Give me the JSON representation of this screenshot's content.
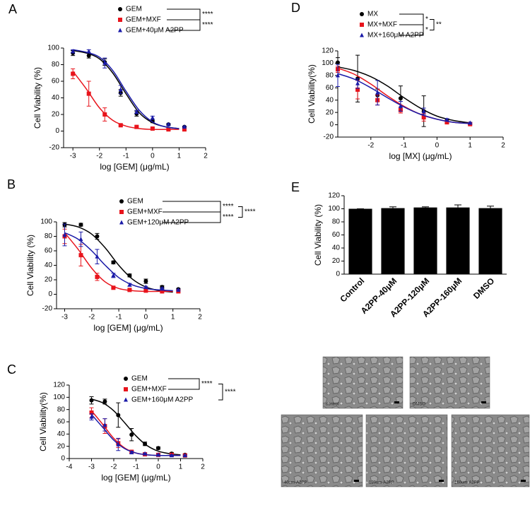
{
  "chart_data": [
    {
      "type": "dose-response",
      "panel": "A",
      "x_label": "log [GEM] (μg/mL)",
      "y_label": "Cell Viability (%)",
      "xlim": [
        -3.35,
        2
      ],
      "xticks": [
        -3,
        -2,
        -1,
        0,
        1,
        2
      ],
      "ylim": [
        -20,
        100
      ],
      "yticks": [
        -20,
        0,
        20,
        40,
        60,
        80,
        100
      ],
      "x": [
        -3,
        -2.4,
        -1.8,
        -1.2,
        -0.6,
        0,
        0.6,
        1.2
      ],
      "fit_x": [
        -3,
        -2.5,
        -2,
        -1.5,
        -1,
        -0.5,
        0,
        0.5,
        1
      ],
      "series": [
        {
          "name": "GEM",
          "color": "#000000",
          "marker": "circle",
          "values": [
            94,
            91,
            83,
            46,
            21,
            12,
            8,
            5
          ],
          "errors": [
            3,
            3,
            4,
            4,
            3,
            2,
            1,
            1
          ],
          "fit": [
            97,
            94,
            87,
            70,
            45,
            22,
            10,
            5,
            3
          ]
        },
        {
          "name": "GEM+MXF",
          "color": "#e8141c",
          "marker": "square",
          "values": [
            69,
            45,
            20,
            7,
            5,
            3,
            2,
            2
          ],
          "errors": [
            6,
            15,
            8,
            1,
            1,
            1,
            1,
            1
          ],
          "fit": [
            72,
            51,
            28,
            13,
            6,
            3,
            2,
            2,
            2
          ]
        },
        {
          "name": "GEM+40μM A2PP",
          "color": "#1a1aa8",
          "marker": "triangle",
          "values": [
            96,
            96,
            82,
            50,
            23,
            16,
            8,
            5
          ],
          "errors": [
            2,
            2,
            6,
            5,
            2,
            2,
            1,
            1
          ],
          "fit": [
            98,
            95,
            89,
            73,
            48,
            25,
            11,
            5,
            3
          ]
        }
      ],
      "significance": [
        "****",
        "****"
      ]
    },
    {
      "type": "dose-response",
      "panel": "B",
      "x_label": "log [GEM] (μg/mL)",
      "y_label": "Cell Viability (%)",
      "xlim": [
        -3.3,
        2
      ],
      "xticks": [
        -3,
        -2,
        -1,
        0,
        1,
        2
      ],
      "ylim": [
        -20,
        100
      ],
      "yticks": [
        -20,
        0,
        20,
        40,
        60,
        80,
        100
      ],
      "x": [
        -3,
        -2.4,
        -1.8,
        -1.2,
        -0.6,
        0,
        0.6,
        1.2
      ],
      "fit_x": [
        -3,
        -2.5,
        -2,
        -1.5,
        -1,
        -0.5,
        0,
        0.5,
        1
      ],
      "series": [
        {
          "name": "GEM",
          "color": "#000000",
          "marker": "circle",
          "values": [
            96,
            96,
            80,
            44,
            26,
            18,
            10,
            7
          ],
          "errors": [
            3,
            2,
            4,
            2,
            2,
            3,
            2,
            1
          ],
          "fit": [
            97,
            93,
            83,
            64,
            40,
            21,
            10,
            5,
            3
          ]
        },
        {
          "name": "GEM+MXF",
          "color": "#e8141c",
          "marker": "square",
          "values": [
            80,
            54,
            24,
            9,
            6,
            5,
            4,
            4
          ],
          "errors": [
            10,
            15,
            5,
            1,
            1,
            1,
            1,
            1
          ],
          "fit": [
            85,
            62,
            36,
            17,
            8,
            5,
            4,
            4,
            4
          ]
        },
        {
          "name": "GEM+120μM A2PP",
          "color": "#1a1aa8",
          "marker": "triangle",
          "values": [
            82,
            76,
            52,
            26,
            13,
            10,
            8,
            6
          ],
          "errors": [
            15,
            10,
            10,
            3,
            2,
            1,
            1,
            1
          ],
          "fit": [
            85,
            76,
            60,
            40,
            23,
            13,
            8,
            6,
            5
          ]
        }
      ],
      "significance": [
        "****",
        "****",
        "****"
      ]
    },
    {
      "type": "dose-response",
      "panel": "C",
      "x_label": "log [GEM] (μg/mL)",
      "y_label": "Cell Viability(%)",
      "xlim": [
        -4,
        2
      ],
      "xticks": [
        -4,
        -3,
        -2,
        -1,
        0,
        1,
        2
      ],
      "ylim": [
        0,
        120
      ],
      "yticks": [
        0,
        20,
        40,
        60,
        80,
        100,
        120
      ],
      "x": [
        -3,
        -2.4,
        -1.8,
        -1.2,
        -0.6,
        0,
        0.6,
        1.2
      ],
      "fit_x": [
        -3,
        -2.5,
        -2,
        -1.5,
        -1,
        -0.5,
        0,
        0.5,
        1
      ],
      "series": [
        {
          "name": "GEM",
          "color": "#000000",
          "marker": "circle",
          "values": [
            95,
            93,
            71,
            39,
            24,
            17,
            8,
            6
          ],
          "errors": [
            6,
            4,
            20,
            10,
            3,
            2,
            2,
            2
          ],
          "fit": [
            97,
            91,
            78,
            58,
            37,
            21,
            12,
            8,
            6
          ]
        },
        {
          "name": "GEM+MXF",
          "color": "#e8141c",
          "marker": "square",
          "values": [
            75,
            53,
            25,
            11,
            7,
            6,
            6,
            5
          ],
          "errors": [
            8,
            12,
            7,
            2,
            1,
            1,
            1,
            1
          ],
          "fit": [
            78,
            56,
            33,
            17,
            9,
            6,
            5,
            5,
            5
          ]
        },
        {
          "name": "GEM+160μM A2PP",
          "color": "#1a1aa8",
          "marker": "triangle",
          "values": [
            68,
            55,
            23,
            10,
            8,
            6,
            5,
            5
          ],
          "errors": [
            5,
            10,
            10,
            2,
            1,
            1,
            1,
            1
          ],
          "fit": [
            72,
            51,
            30,
            16,
            9,
            6,
            5,
            5,
            5
          ]
        }
      ],
      "significance": [
        "****",
        "****"
      ]
    },
    {
      "type": "dose-response",
      "panel": "D",
      "x_label": "log [MX] (μg/mL)",
      "y_label": "Cell Viability(%)",
      "xlim": [
        -3,
        2
      ],
      "xticks": [
        -2,
        -1,
        0,
        1,
        2
      ],
      "ylim": [
        -20,
        120
      ],
      "yticks": [
        -20,
        0,
        20,
        40,
        60,
        80,
        100,
        120
      ],
      "x": [
        -3,
        -2.4,
        -1.8,
        -1.1,
        -0.4,
        0.3,
        1
      ],
      "fit_x": [
        -3,
        -2.5,
        -2,
        -1.5,
        -1,
        -0.5,
        0,
        0.5,
        1
      ],
      "series": [
        {
          "name": "MX",
          "color": "#000000",
          "marker": "circle",
          "values": [
            101,
            75,
            48,
            43,
            22,
            6,
            2
          ],
          "errors": [
            8,
            38,
            10,
            20,
            25,
            3,
            2
          ],
          "fit": [
            94,
            88,
            78,
            63,
            44,
            27,
            14,
            7,
            3
          ]
        },
        {
          "name": "MX+MXF",
          "color": "#e8141c",
          "marker": "square",
          "values": [
            90,
            57,
            40,
            24,
            12,
            4,
            1
          ],
          "errors": [
            5,
            15,
            8,
            5,
            6,
            2,
            1
          ],
          "fit": [
            92,
            82,
            66,
            47,
            30,
            17,
            9,
            4,
            2
          ]
        },
        {
          "name": "MX+160μM A2PP",
          "color": "#1a1aa8",
          "marker": "triangle",
          "values": [
            80,
            67,
            52,
            30,
            22,
            8,
            3
          ],
          "errors": [
            18,
            8,
            20,
            8,
            5,
            2,
            1
          ],
          "fit": [
            83,
            74,
            60,
            44,
            29,
            17,
            9,
            4,
            2
          ]
        }
      ],
      "significance": [
        "*",
        "*",
        "**"
      ]
    },
    {
      "type": "bar",
      "panel": "E",
      "y_label": "Cell Viability (%)",
      "categories": [
        "Control",
        "A2PP-40μM",
        "A2PP-120μM",
        "A2PP-160μM",
        "DMSO"
      ],
      "values": [
        100,
        101,
        102,
        102,
        101
      ],
      "errors": [
        0,
        2,
        1,
        4,
        3
      ],
      "color": "#000000",
      "ylim": [
        0,
        120
      ],
      "yticks": [
        0,
        20,
        40,
        60,
        80,
        100,
        120
      ]
    }
  ],
  "micrographs": [
    "control",
    "DMSO",
    "40um-A2PP",
    "120um-A2PP",
    "160um-A2PP"
  ]
}
